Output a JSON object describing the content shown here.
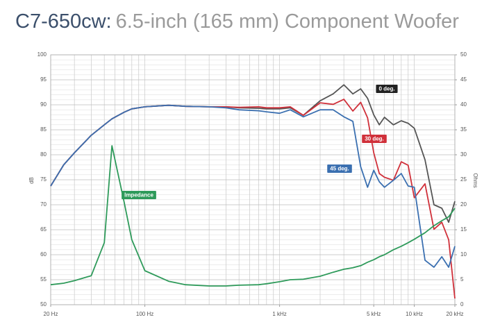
{
  "chart_data": {
    "type": "line",
    "title": "C7-650cw:",
    "subtitle": "6.5-inch (165 mm) Component Woofer",
    "y_label": "dB",
    "y2_label": "Ohms",
    "log_x": true,
    "grid": true,
    "x": [
      20,
      25,
      30,
      40,
      50,
      57,
      70,
      80,
      100,
      150,
      200,
      300,
      400,
      500,
      700,
      800,
      1000,
      1200,
      1500,
      2000,
      2500,
      3000,
      3500,
      4000,
      4500,
      5000,
      5500,
      6000,
      7000,
      8000,
      9000,
      10000,
      12000,
      14000,
      16000,
      18000,
      20000
    ],
    "series": [
      {
        "name": "0 deg.",
        "color": "#555555",
        "values": [
          73.75,
          78,
          80.4,
          83.9,
          86,
          87.2,
          88.5,
          89.2,
          89.6,
          89.9,
          89.7,
          89.6,
          89.6,
          89.4,
          89.3,
          89.2,
          89.2,
          89.4,
          87.9,
          90.8,
          92.2,
          94,
          92.2,
          93.2,
          91.3,
          88,
          86,
          87.5,
          86,
          86.8,
          86.3,
          85.3,
          79,
          70,
          69.3,
          66.5,
          70.7
        ]
      },
      {
        "name": "30 deg.",
        "color": "#d0303a",
        "values": [
          73.75,
          78,
          80.4,
          83.9,
          86,
          87.2,
          88.5,
          89.2,
          89.6,
          89.9,
          89.7,
          89.6,
          89.6,
          89.5,
          89.6,
          89.4,
          89.4,
          89.6,
          87.9,
          90.4,
          90.1,
          91.1,
          88.75,
          90.5,
          87.4,
          80.4,
          76.25,
          75.5,
          74.9,
          78.6,
          77.9,
          71.4,
          74.2,
          65.1,
          66.5,
          63,
          51.25
        ]
      },
      {
        "name": "45 deg.",
        "color": "#3a6fb0",
        "values": [
          73.75,
          78,
          80.4,
          83.9,
          86,
          87.2,
          88.5,
          89.2,
          89.6,
          89.9,
          89.7,
          89.6,
          89.4,
          89,
          88.8,
          88.6,
          88.3,
          89,
          87.6,
          89,
          89,
          87.6,
          86.7,
          77.6,
          73.5,
          76.9,
          74.6,
          73.5,
          74.9,
          76.25,
          73.75,
          73.5,
          58.9,
          57.5,
          59.6,
          57.5,
          61.7
        ]
      },
      {
        "name": "Impedance",
        "color": "#2e9a5a",
        "axis": "y2",
        "values": [
          4,
          4.3,
          4.8,
          5.8,
          12.4,
          31.8,
          20.7,
          13,
          6.8,
          4.7,
          4,
          3.75,
          3.75,
          3.9,
          4,
          4.2,
          4.6,
          5,
          5.1,
          5.7,
          6.5,
          7.1,
          7.4,
          7.8,
          8.5,
          9,
          9.6,
          10,
          11,
          11.7,
          12.4,
          13.1,
          14.4,
          15.8,
          16.8,
          17.6,
          19.3
        ]
      }
    ],
    "xlim": [
      20,
      20000
    ],
    "xticks": [
      {
        "value": 20,
        "label": "20 Hz"
      },
      {
        "value": 100,
        "label": "100 Hz"
      },
      {
        "value": 1000,
        "label": "1 kHz"
      },
      {
        "value": 5000,
        "label": "5 kHz"
      },
      {
        "value": 10000,
        "label": "10 kHz"
      },
      {
        "value": 20000,
        "label": "20 kHz"
      }
    ],
    "xgrid": [
      20,
      30,
      40,
      50,
      60,
      70,
      80,
      90,
      100,
      200,
      300,
      400,
      500,
      600,
      700,
      800,
      900,
      1000,
      2000,
      3000,
      4000,
      5000,
      6000,
      7000,
      8000,
      9000,
      10000,
      20000
    ],
    "ylim": [
      50,
      100
    ],
    "yticks": [
      50,
      55,
      60,
      65,
      70,
      75,
      80,
      85,
      90,
      95,
      100
    ],
    "ygrid": [
      51,
      52,
      53,
      54,
      56,
      57,
      58,
      59,
      61,
      62,
      63,
      64,
      66,
      67,
      68,
      69,
      71,
      72,
      73,
      74,
      76,
      77,
      78,
      79,
      81,
      82,
      83,
      84,
      86,
      87,
      88,
      89,
      91,
      92,
      93,
      94,
      96,
      97,
      98,
      99
    ],
    "y2lim": [
      0,
      50
    ],
    "y2ticks": [
      0,
      5,
      10,
      15,
      20,
      25,
      30,
      35,
      40,
      45,
      50
    ]
  }
}
